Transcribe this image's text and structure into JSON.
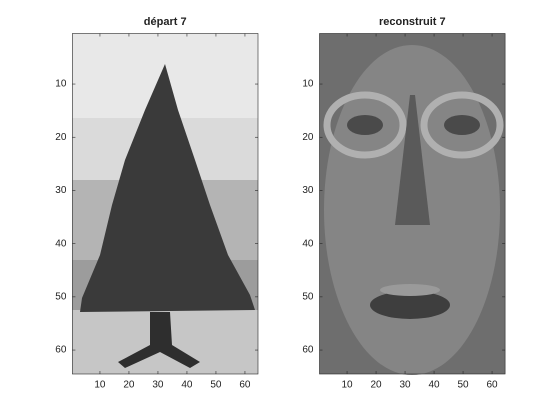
{
  "chart_data": [
    {
      "type": "image",
      "title": "départ 7",
      "xlim": [
        0.5,
        64.5
      ],
      "ylim": [
        0.5,
        64.5
      ],
      "xticks": [
        10,
        20,
        30,
        40,
        50,
        60
      ],
      "yticks": [
        10,
        20,
        30,
        40,
        50,
        60
      ]
    },
    {
      "type": "image",
      "title": "reconstruit 7",
      "xlim": [
        0.5,
        64.5
      ],
      "ylim": [
        0.5,
        64.5
      ],
      "xticks": [
        10,
        20,
        30,
        40,
        50,
        60
      ],
      "yticks": [
        10,
        20,
        30,
        40,
        50,
        60
      ]
    }
  ]
}
